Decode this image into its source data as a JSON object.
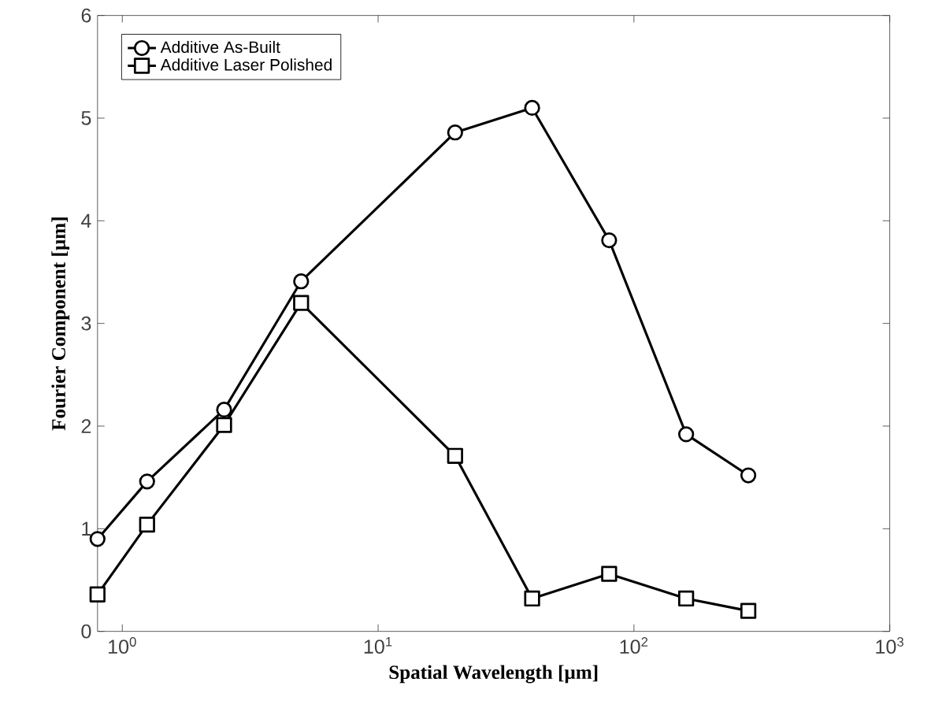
{
  "chart_data": {
    "type": "line",
    "xlabel": "Spatial Wavelength [µm]",
    "ylabel": "Fourier Component [µm]",
    "x": [
      0.8,
      1.25,
      2.5,
      5,
      20,
      40,
      80,
      160,
      280
    ],
    "series": [
      {
        "name": "Additive As-Built",
        "color": "#000000",
        "marker": "circle",
        "values": [
          0.9,
          1.46,
          2.16,
          3.41,
          4.86,
          5.1,
          3.81,
          1.92,
          1.52
        ]
      },
      {
        "name": "Additive Laser Polished",
        "color": "#000000",
        "marker": "square",
        "values": [
          0.36,
          1.04,
          2.01,
          3.2,
          1.71,
          0.32,
          0.56,
          0.32,
          0.2
        ]
      }
    ],
    "log": "x",
    "xlim": [
      0.8,
      1000
    ],
    "ylim": [
      0,
      6
    ],
    "xticks": [
      {
        "value": 1,
        "label": "10$^{0}$"
      },
      {
        "value": 10,
        "label": "10$^{1}$"
      },
      {
        "value": 100,
        "label": "10$^{2}$"
      },
      {
        "value": 1000,
        "label": "10$^{3}$"
      }
    ],
    "yticks": [
      0,
      1,
      2,
      3,
      4,
      5,
      6
    ],
    "grid": false,
    "legend": "top left",
    "line_style": "solid"
  }
}
